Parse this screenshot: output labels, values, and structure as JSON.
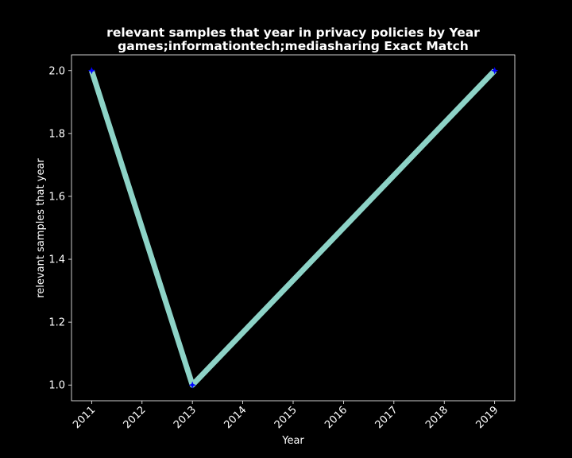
{
  "chart_data": {
    "type": "line",
    "title_line1": "relevant samples that year in privacy policies by Year",
    "title_line2": "games;informationtech;mediasharing Exact Match",
    "xlabel": "Year",
    "ylabel": "relevant samples that year",
    "x_ticks": [
      "2011",
      "2012",
      "2013",
      "2014",
      "2015",
      "2016",
      "2017",
      "2018",
      "2019"
    ],
    "y_ticks": [
      "1.0",
      "1.2",
      "1.4",
      "1.6",
      "1.8",
      "2.0"
    ],
    "xlim": [
      2010.6,
      2019.4
    ],
    "ylim": [
      0.95,
      2.05
    ],
    "series": [
      {
        "name": "relevant samples that year",
        "x": [
          2011,
          2013,
          2019
        ],
        "values": [
          2,
          1,
          2
        ]
      }
    ],
    "colors": {
      "background": "#000000",
      "axes_edge": "#ffffff",
      "line": "#8dd3c7",
      "marker": "#0000ff",
      "text": "#ffffff"
    }
  }
}
